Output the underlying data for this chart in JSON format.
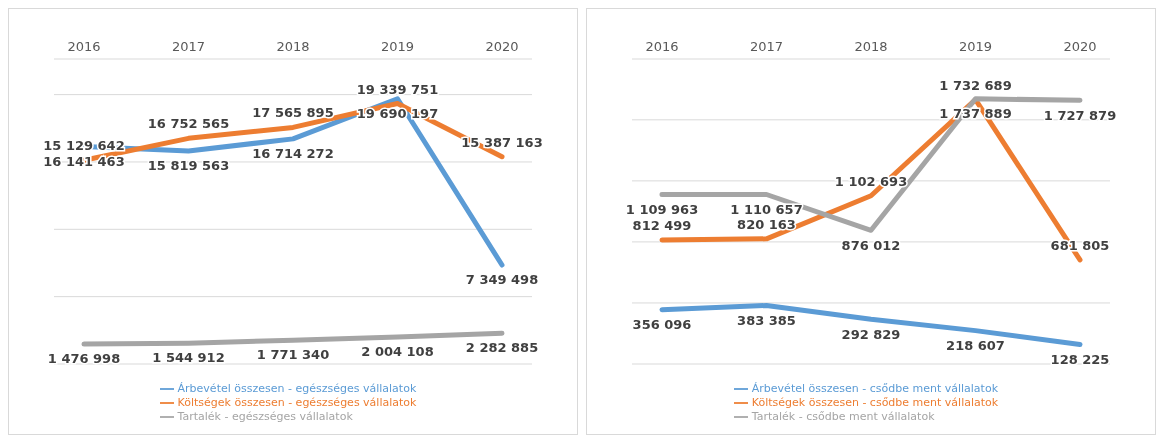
{
  "chart_data": [
    {
      "type": "line",
      "categories": [
        "2016",
        "2017",
        "2018",
        "2019",
        "2020"
      ],
      "series": [
        {
          "name": "Árbevétel összesen - egészséges vállalatok",
          "color": "#5b9bd5",
          "values": [
            16141463,
            15819563,
            16714272,
            19690197,
            7349498
          ]
        },
        {
          "name": "Költségek összesen - egészséges vállalatok",
          "color": "#ed7d31",
          "values": [
            15129642,
            16752565,
            17565895,
            19339751,
            15387163
          ]
        },
        {
          "name": "Tartalék - egészséges vállalatok",
          "color": "#a5a5a5",
          "values": [
            1476998,
            1544912,
            1771340,
            2004108,
            2282885
          ]
        }
      ],
      "data_labels": true,
      "grid": "y",
      "legend": "bottom",
      "marker": "none",
      "line_style": "solid"
    },
    {
      "type": "line",
      "categories": [
        "2016",
        "2017",
        "2018",
        "2019",
        "2020"
      ],
      "series": [
        {
          "name": "Árbevétel összesen - csődbe ment vállalatok",
          "color": "#5b9bd5",
          "values": [
            356096,
            383385,
            292829,
            218607,
            128225
          ]
        },
        {
          "name": "Költségek összesen - csődbe ment vállalatok",
          "color": "#ed7d31",
          "values": [
            812499,
            820163,
            1102693,
            1732689,
            681805
          ]
        },
        {
          "name": "Tartalék - csődbe ment vállalatok",
          "color": "#a5a5a5",
          "values": [
            1109963,
            1110657,
            876012,
            1737889,
            1727879
          ]
        }
      ],
      "data_labels": true,
      "grid": "y",
      "legend": "bottom",
      "marker": "none",
      "line_style": "solid"
    }
  ]
}
